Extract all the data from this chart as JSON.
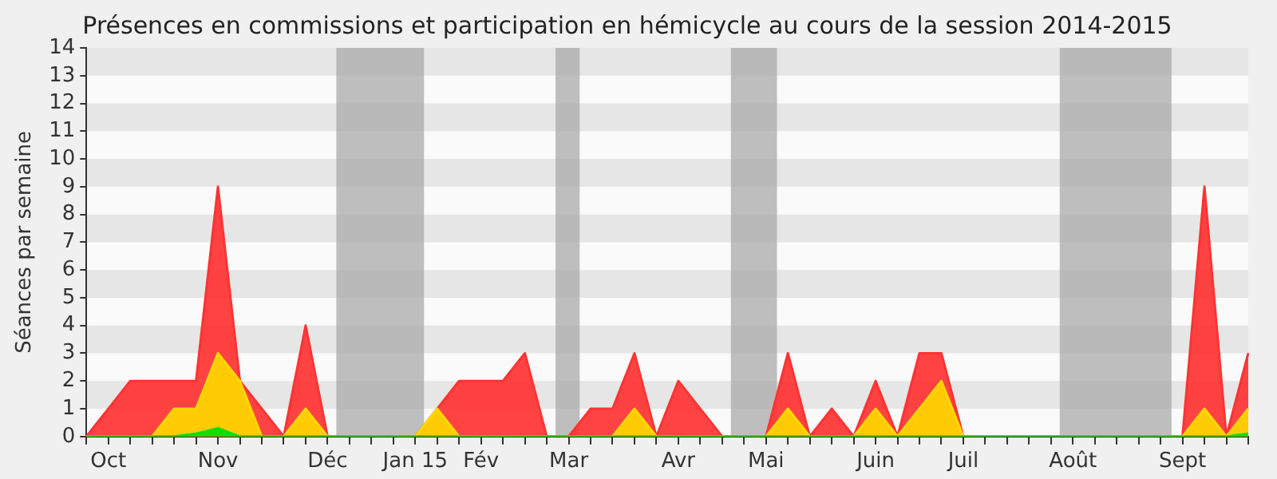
{
  "chart_data": {
    "type": "area",
    "title": "Présences en commissions et participation en hémicycle au cours de la session 2014-2015",
    "ylabel": "Séances par semaine",
    "categories": [
      null,
      "Oct",
      null,
      null,
      null,
      null,
      "Nov",
      null,
      null,
      null,
      null,
      "Déc",
      null,
      null,
      null,
      "Jan 15",
      null,
      null,
      "Fév",
      null,
      null,
      null,
      "Mar",
      null,
      null,
      null,
      null,
      "Avr",
      null,
      null,
      null,
      "Mai",
      null,
      null,
      null,
      null,
      "Juin",
      null,
      null,
      null,
      "Juil",
      null,
      null,
      null,
      null,
      "Août",
      null,
      null,
      null,
      null,
      "Sept",
      null,
      null,
      null
    ],
    "series": [
      {
        "color": "#ff3333",
        "values": [
          0,
          1,
          2,
          2,
          2,
          2,
          9,
          2,
          1,
          0,
          4,
          0,
          0,
          0,
          0,
          0,
          1,
          2,
          2,
          2,
          3,
          0,
          0,
          1,
          1,
          3,
          0,
          2,
          1,
          0,
          0,
          0,
          3,
          0,
          1,
          0,
          2,
          0,
          3,
          3,
          0,
          0,
          0,
          0,
          0,
          0,
          0,
          0,
          0,
          0,
          0,
          9,
          0,
          3
        ]
      },
      {
        "color": "#ffd700",
        "values": [
          0,
          0,
          0,
          0,
          1,
          1,
          3,
          2,
          0,
          0,
          1,
          0,
          0,
          0,
          0,
          0,
          1,
          0,
          0,
          0,
          0,
          0,
          0,
          0,
          0,
          1,
          0,
          0,
          0,
          0,
          0,
          0,
          1,
          0,
          0,
          0,
          1,
          0,
          1,
          2,
          0,
          0,
          0,
          0,
          0,
          0,
          0,
          0,
          0,
          0,
          0,
          1,
          0,
          1
        ]
      },
      {
        "color": "#00e000",
        "values": [
          0,
          0,
          0,
          0,
          0,
          0.1,
          0.3,
          0,
          0,
          0,
          0,
          0,
          0,
          0,
          0,
          0,
          0,
          0,
          0,
          0,
          0,
          0,
          0,
          0,
          0,
          0,
          0,
          0,
          0,
          0,
          0,
          0,
          0,
          0,
          0,
          0,
          0,
          0,
          0,
          0,
          0,
          0,
          0,
          0,
          0,
          0,
          0,
          0,
          0,
          0,
          0,
          0,
          0,
          0.1
        ]
      }
    ],
    "ylim": [
      0,
      14
    ],
    "yticks": [
      0,
      1,
      2,
      3,
      4,
      5,
      6,
      7,
      8,
      9,
      10,
      11,
      12,
      13,
      14
    ],
    "grid": false
  }
}
